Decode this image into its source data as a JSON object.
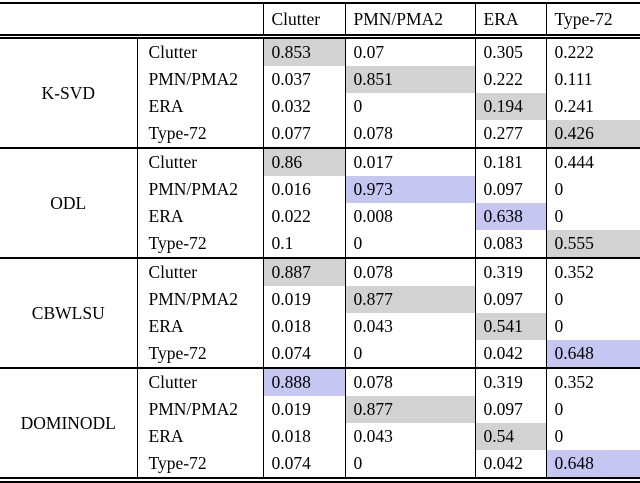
{
  "colors": {
    "gray_highlight": "#d2d2d2",
    "blue_highlight": "#c6c6f2",
    "rule": "#000000",
    "background": "#ffffff"
  },
  "chart_data": {
    "type": "table",
    "title": "",
    "column_headers": [
      "Clutter",
      "PMN/PMA2",
      "ERA",
      "Type-72"
    ],
    "row_groups": [
      "K-SVD",
      "ODL",
      "CBWLSU",
      "DOMINODL"
    ],
    "note_gray_cells": "diagonal (same-class) values highlighted gray",
    "note_blue_cells": "best value per class across methods highlighted blue"
  },
  "table": {
    "column_headers": [
      "Clutter",
      "PMN/PMA2",
      "ERA",
      "Type-72"
    ],
    "blocks": [
      {
        "method": "K-SVD",
        "rows": [
          {
            "label": "Clutter",
            "values": [
              "0.853",
              "0.07",
              "0.305",
              "0.222"
            ],
            "highlights": [
              "gray",
              null,
              null,
              null
            ]
          },
          {
            "label": "PMN/PMA2",
            "values": [
              "0.037",
              "0.851",
              "0.222",
              "0.111"
            ],
            "highlights": [
              null,
              "gray",
              null,
              null
            ]
          },
          {
            "label": "ERA",
            "values": [
              "0.032",
              "0",
              "0.194",
              "0.241"
            ],
            "highlights": [
              null,
              null,
              "gray",
              null
            ]
          },
          {
            "label": "Type-72",
            "values": [
              "0.077",
              "0.078",
              "0.277",
              "0.426"
            ],
            "highlights": [
              null,
              null,
              null,
              "gray"
            ]
          }
        ]
      },
      {
        "method": "ODL",
        "rows": [
          {
            "label": "Clutter",
            "values": [
              "0.86",
              "0.017",
              "0.181",
              "0.444"
            ],
            "highlights": [
              "gray",
              null,
              null,
              null
            ]
          },
          {
            "label": "PMN/PMA2",
            "values": [
              "0.016",
              "0.973",
              "0.097",
              "0"
            ],
            "highlights": [
              null,
              "blue",
              null,
              null
            ]
          },
          {
            "label": "ERA",
            "values": [
              "0.022",
              "0.008",
              "0.638",
              "0"
            ],
            "highlights": [
              null,
              null,
              "blue",
              null
            ]
          },
          {
            "label": "Type-72",
            "values": [
              "0.1",
              "0",
              "0.083",
              "0.555"
            ],
            "highlights": [
              null,
              null,
              null,
              "gray"
            ]
          }
        ]
      },
      {
        "method": "CBWLSU",
        "rows": [
          {
            "label": "Clutter",
            "values": [
              "0.887",
              "0.078",
              "0.319",
              "0.352"
            ],
            "highlights": [
              "gray",
              null,
              null,
              null
            ]
          },
          {
            "label": "PMN/PMA2",
            "values": [
              "0.019",
              "0.877",
              "0.097",
              "0"
            ],
            "highlights": [
              null,
              "gray",
              null,
              null
            ]
          },
          {
            "label": "ERA",
            "values": [
              "0.018",
              "0.043",
              "0.541",
              "0"
            ],
            "highlights": [
              null,
              null,
              "gray",
              null
            ]
          },
          {
            "label": "Type-72",
            "values": [
              "0.074",
              "0",
              "0.042",
              "0.648"
            ],
            "highlights": [
              null,
              null,
              null,
              "blue"
            ]
          }
        ]
      },
      {
        "method": "DOMINODL",
        "rows": [
          {
            "label": "Clutter",
            "values": [
              "0.888",
              "0.078",
              "0.319",
              "0.352"
            ],
            "highlights": [
              "blue",
              null,
              null,
              null
            ]
          },
          {
            "label": "PMN/PMA2",
            "values": [
              "0.019",
              "0.877",
              "0.097",
              "0"
            ],
            "highlights": [
              null,
              "gray",
              null,
              null
            ]
          },
          {
            "label": "ERA",
            "values": [
              "0.018",
              "0.043",
              "0.54",
              "0"
            ],
            "highlights": [
              null,
              null,
              "gray",
              null
            ]
          },
          {
            "label": "Type-72",
            "values": [
              "0.074",
              "0",
              "0.042",
              "0.648"
            ],
            "highlights": [
              null,
              null,
              null,
              "blue"
            ]
          }
        ]
      }
    ]
  }
}
